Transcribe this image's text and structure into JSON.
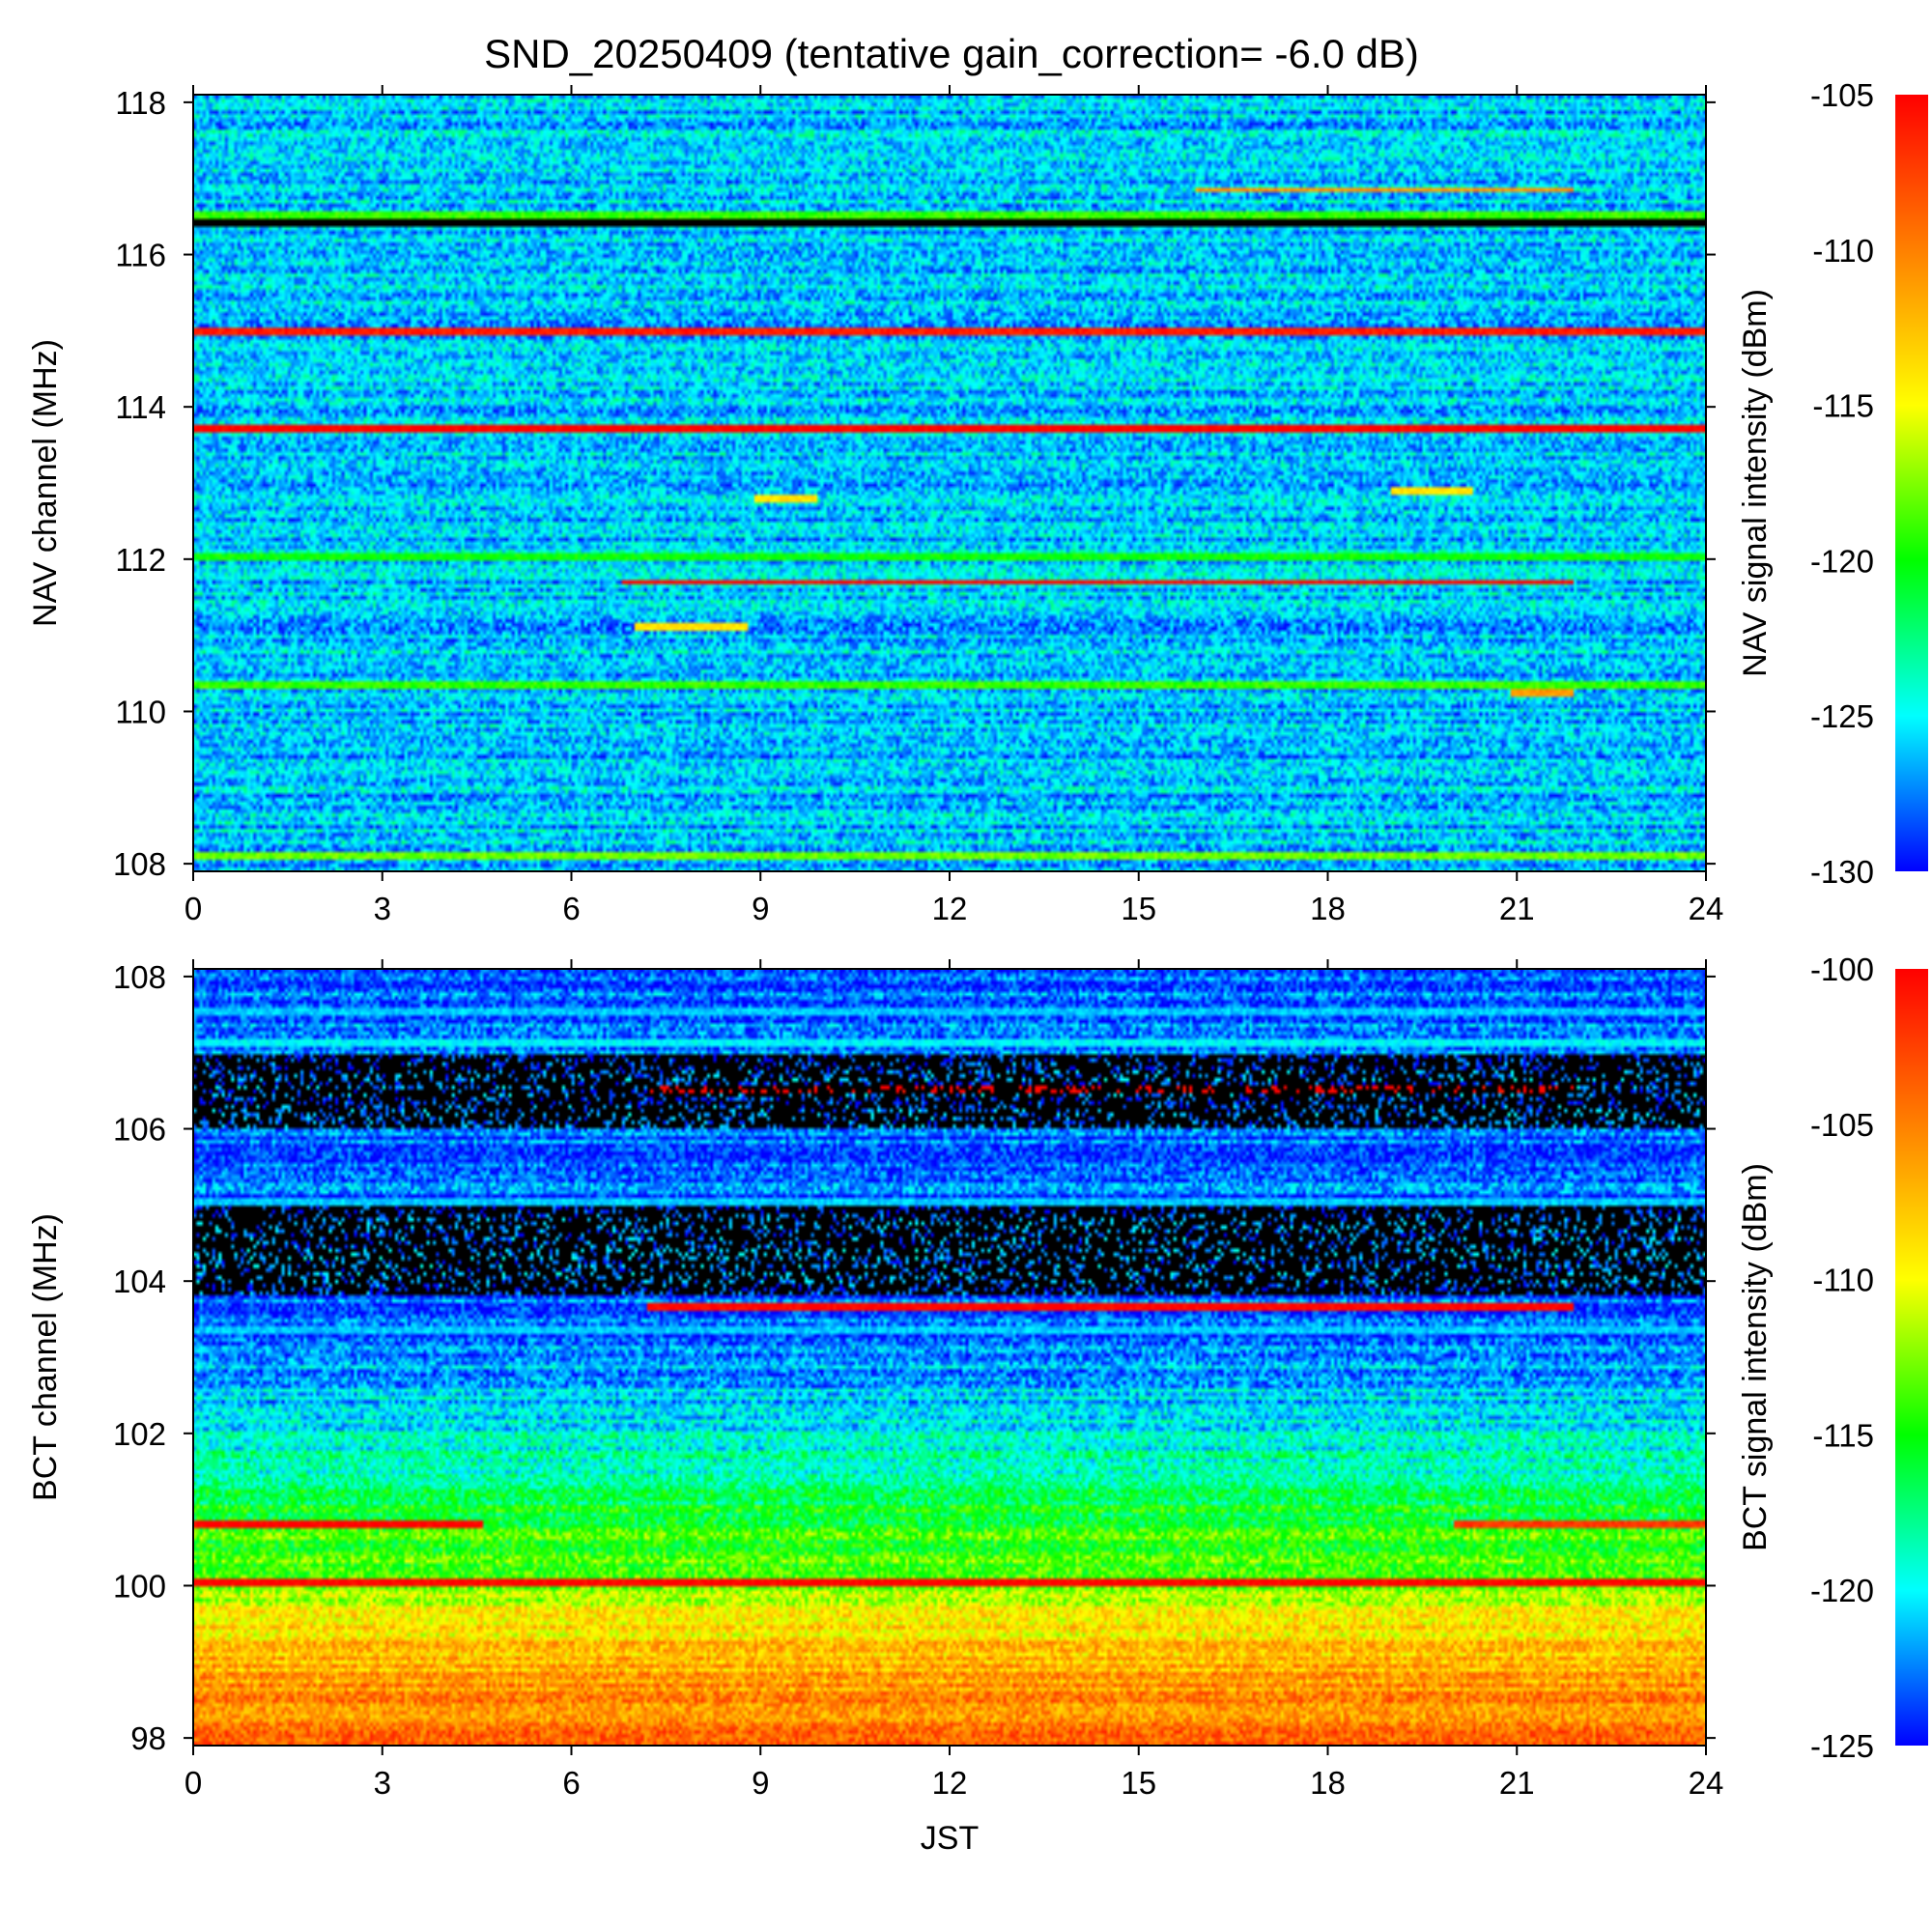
{
  "title": "SND_20250409 (tentative gain_correction= -6.0 dB)",
  "chart_data": [
    {
      "type": "heatmap",
      "id": "nav",
      "xlabel": "",
      "ylabel": "NAV channel (MHz)",
      "colorbar_label": "NAV signal intensity (dBm)",
      "xlim": [
        0,
        24
      ],
      "ylim": [
        107.9,
        118.1
      ],
      "x_ticks": [
        0,
        3,
        6,
        9,
        12,
        15,
        18,
        21,
        24
      ],
      "y_ticks": [
        108,
        110,
        112,
        114,
        116,
        118
      ],
      "colorbar_range": [
        -130,
        -105
      ],
      "colorbar_ticks": [
        -130,
        -125,
        -120,
        -115,
        -110,
        -105
      ],
      "colormap": [
        "#0000ff",
        "#00ffff",
        "#00ff00",
        "#ffff00",
        "#ff8000",
        "#ff0000"
      ],
      "background_level": -126,
      "features": [
        {
          "freq": 116.4,
          "t": [
            0,
            24
          ],
          "level": "no-data"
        },
        {
          "freq": 116.5,
          "t": [
            0,
            24
          ],
          "level": -119
        },
        {
          "freq": 115.0,
          "t": [
            0,
            24
          ],
          "level": -106
        },
        {
          "freq": 113.7,
          "t": [
            0,
            24
          ],
          "level": -105
        },
        {
          "freq": 112.05,
          "t": [
            0,
            24
          ],
          "level": -120
        },
        {
          "freq": 111.7,
          "t": [
            6.8,
            21.9
          ],
          "level": -105
        },
        {
          "freq": 110.35,
          "t": [
            0,
            24
          ],
          "level": -119
        },
        {
          "freq": 116.85,
          "t": [
            15.9,
            21.9
          ],
          "level": -111
        },
        {
          "freq": 112.8,
          "t": [
            8.9,
            9.9
          ],
          "level": -114
        },
        {
          "freq": 112.9,
          "t": [
            19.0,
            20.3
          ],
          "level": -114
        },
        {
          "freq": 111.1,
          "t": [
            7.0,
            8.8
          ],
          "level": -114
        },
        {
          "freq": 110.25,
          "t": [
            20.9,
            21.9
          ],
          "level": -111
        },
        {
          "freq": 108.1,
          "t": [
            0,
            24
          ],
          "level": -118
        }
      ]
    },
    {
      "type": "heatmap",
      "id": "bct",
      "xlabel": "JST",
      "ylabel": "BCT channel (MHz)",
      "colorbar_label": "BCT signal intensity (dBm)",
      "xlim": [
        0,
        24
      ],
      "ylim": [
        97.9,
        108.1
      ],
      "x_ticks": [
        0,
        3,
        6,
        9,
        12,
        15,
        18,
        21,
        24
      ],
      "y_ticks": [
        98,
        100,
        102,
        104,
        106,
        108
      ],
      "colorbar_range": [
        -125,
        -100
      ],
      "colorbar_ticks": [
        -125,
        -120,
        -115,
        -110,
        -105,
        -100
      ],
      "colormap": [
        "#0000ff",
        "#00ffff",
        "#00ff00",
        "#ffff00",
        "#ff8000",
        "#ff0000"
      ],
      "background_gradient": [
        {
          "freq": 98.0,
          "level": -104
        },
        {
          "freq": 99.0,
          "level": -107
        },
        {
          "freq": 100.0,
          "level": -112
        },
        {
          "freq": 101.0,
          "level": -116
        },
        {
          "freq": 102.0,
          "level": -120
        },
        {
          "freq": 103.5,
          "level": -123
        }
      ],
      "blackout_bands": [
        {
          "freq": [
            106.0,
            107.0
          ],
          "t": [
            0,
            24
          ]
        },
        {
          "freq": [
            103.8,
            105.0
          ],
          "t": [
            0,
            24
          ]
        }
      ],
      "features": [
        {
          "freq": 100.05,
          "t": [
            0,
            24
          ],
          "level": -100
        },
        {
          "freq": 100.8,
          "t": [
            0,
            4.6
          ],
          "level": -100
        },
        {
          "freq": 100.8,
          "t": [
            20.0,
            24
          ],
          "level": -102
        },
        {
          "freq": 106.5,
          "t": [
            7.2,
            21.9
          ],
          "level": -100
        },
        {
          "freq": 103.65,
          "t": [
            7.2,
            21.9
          ],
          "level": -100
        },
        {
          "freq": 107.15,
          "t": [
            0,
            24
          ],
          "level": -120
        },
        {
          "freq": 107.55,
          "t": [
            0,
            24
          ],
          "level": -121
        },
        {
          "freq": 105.05,
          "t": [
            0,
            24
          ],
          "level": -121
        },
        {
          "freq": 103.35,
          "t": [
            0,
            24
          ],
          "level": -121
        }
      ]
    }
  ]
}
